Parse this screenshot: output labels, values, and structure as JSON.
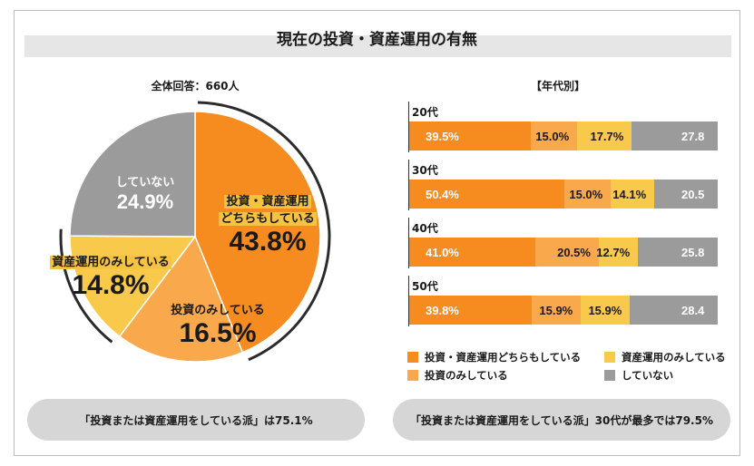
{
  "title": "現在の投資・資産運用の有無",
  "left": {
    "subtitle": "全体回答：660人",
    "summary": "「投資または資産運用をしている派」は75.1%"
  },
  "right": {
    "subtitle": "【年代別】",
    "summary": "「投資または資産運用をしている派」30代が最多では79.5%"
  },
  "colors": {
    "both": "#f68b1f",
    "invest_only": "#f9a94b",
    "asset_only": "#f8c94a",
    "none": "#9b9b9b"
  },
  "chart_data": [
    {
      "type": "pie",
      "title": "現在の投資・資産運用の有無",
      "subtitle": "全体回答：660人",
      "slices": [
        {
          "key": "both",
          "label_lines": [
            "投資・資産運用",
            "どちらもしている"
          ],
          "value": 43.8,
          "display": "43.8%"
        },
        {
          "key": "invest_only",
          "label_lines": [
            "投資のみしている"
          ],
          "value": 16.5,
          "display": "16.5%"
        },
        {
          "key": "asset_only",
          "label_lines": [
            "資産運用のみしている"
          ],
          "value": 14.8,
          "display": "14.8%"
        },
        {
          "key": "none",
          "label_lines": [
            "していない"
          ],
          "value": 24.9,
          "display": "24.9%"
        }
      ]
    },
    {
      "type": "bar",
      "orientation": "horizontal",
      "stacked": true,
      "title": "【年代別】",
      "categories": [
        "20代",
        "30代",
        "40代",
        "50代"
      ],
      "series": [
        {
          "key": "both",
          "name": "投資・資産運用どちらもしている",
          "values": [
            39.5,
            50.4,
            41.0,
            39.8
          ],
          "labels": [
            "39.5%",
            "50.4%",
            "41.0%",
            "39.8%"
          ]
        },
        {
          "key": "invest_only",
          "name": "投資のみしている",
          "values": [
            15.0,
            15.0,
            20.5,
            15.9
          ],
          "labels": [
            "15.0%",
            "15.0%",
            "20.5%",
            "15.9%"
          ]
        },
        {
          "key": "asset_only",
          "name": "資産運用のみしている",
          "values": [
            17.7,
            14.1,
            12.7,
            15.9
          ],
          "labels": [
            "17.7%",
            "14.1%",
            "12.7%",
            "15.9%"
          ]
        },
        {
          "key": "none",
          "name": "していない",
          "values": [
            27.8,
            20.5,
            25.8,
            28.4
          ],
          "labels": [
            "27.8",
            "20.5",
            "25.8",
            "28.4"
          ]
        }
      ],
      "legend_order": [
        "both",
        "asset_only",
        "invest_only",
        "none"
      ],
      "legend": "bottom"
    }
  ]
}
